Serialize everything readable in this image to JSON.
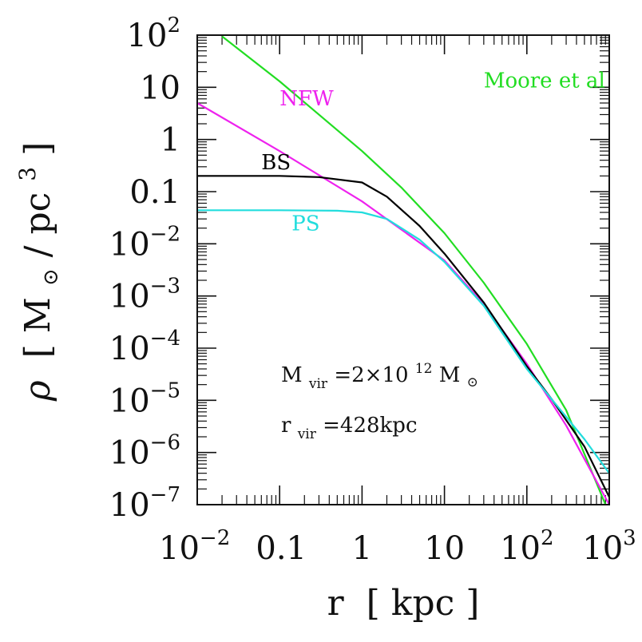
{
  "chart_data": {
    "type": "line",
    "xlabel": "r",
    "xunit": "kpc",
    "ylabel": "ρ",
    "yunit_base": "M",
    "yunit_sub": "⊙",
    "yunit_per": "pc",
    "yunit_exp": "3",
    "xscale": "log",
    "yscale": "log",
    "xlim": [
      0.01,
      1000
    ],
    "ylim": [
      1e-07,
      100
    ],
    "grid": false,
    "legend": "inline labels",
    "x_ticks": [
      {
        "value": 0.01,
        "base": "10",
        "exp": "−2"
      },
      {
        "value": 0.1,
        "text": "0.1"
      },
      {
        "value": 1,
        "text": "1"
      },
      {
        "value": 10,
        "text": "10"
      },
      {
        "value": 100,
        "base": "10",
        "exp": "2"
      },
      {
        "value": 1000,
        "base": "10",
        "exp": "3"
      }
    ],
    "y_ticks": [
      {
        "value": 100,
        "base": "10",
        "exp": "2"
      },
      {
        "value": 10,
        "text": "10"
      },
      {
        "value": 1,
        "text": "1"
      },
      {
        "value": 0.1,
        "text": "0.1"
      },
      {
        "value": 0.01,
        "base": "10",
        "exp": "−2"
      },
      {
        "value": 0.001,
        "base": "10",
        "exp": "−3"
      },
      {
        "value": 0.0001,
        "base": "10",
        "exp": "−4"
      },
      {
        "value": 1e-05,
        "base": "10",
        "exp": "−5"
      },
      {
        "value": 1e-06,
        "base": "10",
        "exp": "−6"
      },
      {
        "value": 1e-07,
        "base": "10",
        "exp": "−7"
      }
    ],
    "series": [
      {
        "name": "Moore et al",
        "color": "#22dd22",
        "label_at": [
          30,
          10
        ],
        "x": [
          0.02,
          0.1,
          1,
          3,
          10,
          30,
          100,
          300,
          900
        ],
        "y": [
          95,
          13,
          0.6,
          0.12,
          0.016,
          0.0018,
          0.00012,
          6.5e-06,
          1e-07
        ]
      },
      {
        "name": "NFW",
        "color": "#ee22ee",
        "label_at": [
          0.1,
          4.5
        ],
        "x": [
          0.01,
          0.1,
          1,
          10,
          30,
          100,
          300,
          1000
        ],
        "y": [
          5,
          0.6,
          0.065,
          0.0048,
          0.0007,
          5e-05,
          3.3e-06,
          1e-07
        ]
      },
      {
        "name": "BS",
        "color": "#000000",
        "label_at": [
          0.06,
          0.27
        ],
        "x": [
          0.01,
          0.1,
          0.3,
          1,
          2,
          5,
          10,
          30,
          100,
          200,
          500,
          1000
        ],
        "y": [
          0.2,
          0.2,
          0.19,
          0.15,
          0.08,
          0.022,
          0.0065,
          0.00075,
          4.5e-05,
          1.05e-05,
          1.3e-06,
          1.4e-07
        ]
      },
      {
        "name": "PS",
        "color": "#22dddd",
        "label_at": [
          0.14,
          0.018
        ],
        "x": [
          0.01,
          0.1,
          0.5,
          1,
          2,
          5,
          10,
          30,
          100,
          200,
          500,
          1000
        ],
        "y": [
          0.044,
          0.044,
          0.043,
          0.04,
          0.03,
          0.012,
          0.0045,
          0.00065,
          4e-05,
          1.05e-05,
          1.8e-06,
          4e-07
        ]
      }
    ],
    "annotations": {
      "mvir_label": "M",
      "mvir_sub": "vir",
      "mvir_value": "=2×10",
      "mvir_exp": "12",
      "mvir_unit": "M",
      "mvir_unit_sub": "⊙",
      "rvir_label": "r",
      "rvir_sub": "vir",
      "rvir_value": "=428kpc"
    }
  }
}
